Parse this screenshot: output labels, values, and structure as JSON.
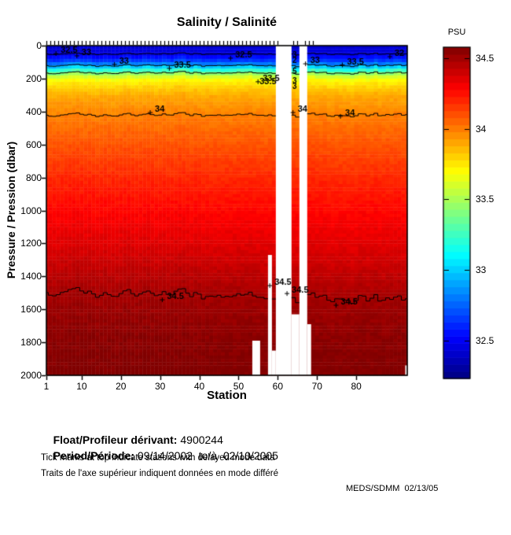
{
  "title": "Salinity / Salinité",
  "colorbar": {
    "title": "PSU",
    "ticks": [
      34.5,
      34,
      33.5,
      33,
      32.5
    ],
    "vmin": 32.23,
    "vmax": 34.58
  },
  "axes": {
    "xlabel": "Station",
    "ylabel": "Pressure / Pression (dbar)",
    "x_ticks": [
      1,
      10,
      20,
      30,
      40,
      50,
      60,
      70,
      80
    ],
    "y_ticks": [
      0,
      200,
      400,
      600,
      800,
      1000,
      1200,
      1400,
      1600,
      1800,
      2000
    ],
    "x_range": [
      1,
      93
    ],
    "y_range": [
      0,
      2000
    ]
  },
  "chart_data": {
    "type": "heatmap",
    "title": "Salinity / Salinité",
    "xlabel": "Station",
    "ylabel": "Pressure / Pression (dbar)",
    "units": "PSU",
    "colormap": "jet",
    "color_range": [
      32.23,
      34.58
    ],
    "n_stations": 93,
    "pressure_range": [
      0,
      2000
    ],
    "salinity_profile": {
      "pressure": [
        0,
        40,
        80,
        110,
        130,
        150,
        170,
        200,
        250,
        300,
        420,
        600,
        800,
        1000,
        1250,
        1520,
        1750,
        2000
      ],
      "salinity": [
        32.42,
        32.45,
        32.65,
        32.9,
        33.1,
        33.35,
        33.55,
        33.7,
        33.82,
        33.9,
        34.0,
        34.1,
        34.2,
        34.28,
        34.38,
        34.5,
        34.55,
        34.58
      ]
    },
    "contour_levels": [
      32.5,
      33,
      33.5,
      34,
      34.5
    ],
    "contour_base_pressure": {
      "32.5": 50,
      "33": 120,
      "33.5": 165,
      "34": 420,
      "34.5": 1520
    },
    "contour_labels": [
      {
        "text": "32.5",
        "s": 6.8,
        "p": 29
      },
      {
        "text": "33",
        "s": 11.2,
        "p": 43
      },
      {
        "text": "33",
        "s": 20.8,
        "p": 95
      },
      {
        "text": "33.5",
        "s": 35.7,
        "p": 119
      },
      {
        "text": "32.5",
        "s": 51.3,
        "p": 57
      },
      {
        "text": "33.5",
        "s": 58.3,
        "p": 200,
        "double": true
      },
      {
        "text": "32.5",
        "s": 64.3,
        "p": 60,
        "vertical": true
      },
      {
        "text": "33",
        "s": 64.3,
        "p": 215,
        "vertical": true
      },
      {
        "text": "33",
        "s": 69.5,
        "p": 91
      },
      {
        "text": "33.5",
        "s": 79.8,
        "p": 98
      },
      {
        "text": "32",
        "s": 91.0,
        "p": 48
      },
      {
        "text": "34",
        "s": 29.9,
        "p": 387
      },
      {
        "text": "34",
        "s": 66.3,
        "p": 387
      },
      {
        "text": "34",
        "s": 78.4,
        "p": 410
      },
      {
        "text": "34.5",
        "s": 61.3,
        "p": 1437
      },
      {
        "text": "34.5",
        "s": 65.7,
        "p": 1485
      },
      {
        "text": "34.5",
        "s": 33.9,
        "p": 1523
      },
      {
        "text": "34.5",
        "s": 78.2,
        "p": 1556
      }
    ],
    "missing_station_ranges_full_depth": [
      [
        60,
        63
      ],
      [
        66,
        67
      ]
    ],
    "missing_below_pressure": [
      {
        "stations": [
          54,
          55
        ],
        "pressure": 1790
      },
      {
        "stations": [
          58,
          58
        ],
        "pressure": 1270
      },
      {
        "stations": [
          59,
          59
        ],
        "pressure": 1850
      },
      {
        "stations": [
          64,
          65
        ],
        "pressure": 1630
      },
      {
        "stations": [
          68,
          68
        ],
        "pressure": 1690
      },
      {
        "stations": [
          93,
          93
        ],
        "pressure": 1940
      }
    ],
    "delayed_mode_station_ranges": [
      [
        1,
        60
      ],
      [
        64,
        65
      ],
      [
        67,
        69
      ]
    ]
  },
  "footer": {
    "float_label": "Float/Profileur dérivant:",
    "float_value": "4900244",
    "period_label": "Period/Période:",
    "period_value": "09/14/2002  to/à  02/10/2005",
    "note_en": "Tick marks at top indicate stations with delayed mode data",
    "note_fr": "Traits de l'axe supérieur indiquent données en mode différé"
  },
  "credit": "MEDS/SDMM  02/13/05"
}
